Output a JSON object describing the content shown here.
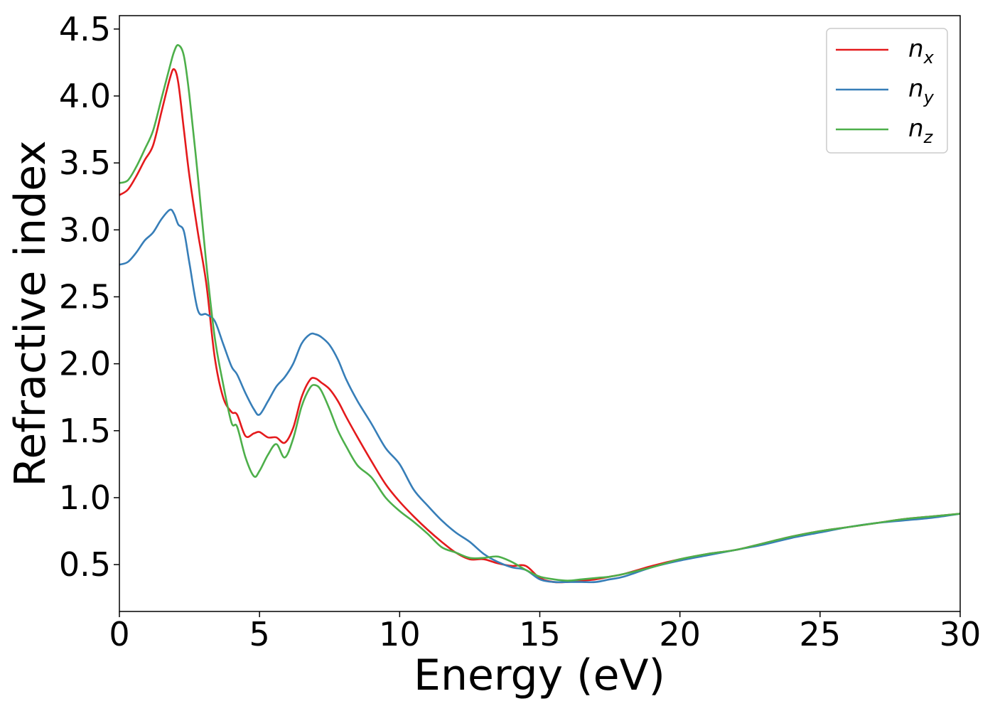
{
  "chart_data": {
    "type": "line",
    "title": "",
    "xlabel": "Energy (eV)",
    "ylabel": "Refractive index",
    "xlim": [
      0,
      30
    ],
    "ylim": [
      0.15,
      4.6
    ],
    "xticks": [
      0,
      5,
      10,
      15,
      20,
      25,
      30
    ],
    "yticks": [
      0.5,
      1.0,
      1.5,
      2.0,
      2.5,
      3.0,
      3.5,
      4.0,
      4.5
    ],
    "xtick_labels": [
      "0",
      "5",
      "10",
      "15",
      "20",
      "25",
      "30"
    ],
    "ytick_labels": [
      "0.5",
      "1.0",
      "1.5",
      "2.0",
      "2.5",
      "3.0",
      "3.5",
      "4.0",
      "4.5"
    ],
    "grid": false,
    "legend_position": "top-right",
    "series": [
      {
        "name": "n",
        "subscript": "x",
        "color": "#e41a1c",
        "x": [
          0,
          0.3,
          0.6,
          0.9,
          1.2,
          1.5,
          1.8,
          1.95,
          2.1,
          2.3,
          2.5,
          2.8,
          3.1,
          3.4,
          3.7,
          4.0,
          4.2,
          4.5,
          4.8,
          5.0,
          5.3,
          5.6,
          5.9,
          6.2,
          6.5,
          6.8,
          7.0,
          7.2,
          7.5,
          7.8,
          8.1,
          8.5,
          9.0,
          9.5,
          10.0,
          10.5,
          11.0,
          11.5,
          12.0,
          12.5,
          13.0,
          13.5,
          14.0,
          14.5,
          15.0,
          15.5,
          16.0,
          16.5,
          17.0,
          17.5,
          18.0,
          19.0,
          20.0,
          21.0,
          22.0,
          23.0,
          24.0,
          25.0,
          26.0,
          27.0,
          28.0,
          29.0,
          30.0
        ],
        "y": [
          3.26,
          3.3,
          3.4,
          3.52,
          3.63,
          3.88,
          4.13,
          4.2,
          4.1,
          3.75,
          3.4,
          2.98,
          2.6,
          2.05,
          1.75,
          1.64,
          1.62,
          1.46,
          1.48,
          1.49,
          1.45,
          1.45,
          1.41,
          1.52,
          1.75,
          1.88,
          1.89,
          1.86,
          1.81,
          1.72,
          1.6,
          1.45,
          1.27,
          1.1,
          0.97,
          0.86,
          0.76,
          0.67,
          0.59,
          0.54,
          0.54,
          0.51,
          0.49,
          0.49,
          0.4,
          0.37,
          0.37,
          0.38,
          0.39,
          0.41,
          0.43,
          0.49,
          0.54,
          0.58,
          0.61,
          0.66,
          0.71,
          0.75,
          0.78,
          0.81,
          0.84,
          0.86,
          0.88
        ]
      },
      {
        "name": "n",
        "subscript": "y",
        "color": "#377eb8",
        "x": [
          0,
          0.3,
          0.6,
          0.9,
          1.2,
          1.5,
          1.8,
          1.95,
          2.1,
          2.3,
          2.5,
          2.8,
          3.1,
          3.4,
          3.7,
          4.0,
          4.2,
          4.5,
          4.8,
          5.0,
          5.3,
          5.6,
          5.9,
          6.2,
          6.5,
          6.8,
          7.0,
          7.2,
          7.5,
          7.8,
          8.1,
          8.5,
          9.0,
          9.5,
          10.0,
          10.5,
          11.0,
          11.5,
          12.0,
          12.5,
          13.0,
          13.5,
          14.0,
          14.5,
          15.0,
          15.5,
          16.0,
          16.5,
          17.0,
          17.5,
          18.0,
          19.0,
          20.0,
          21.0,
          22.0,
          23.0,
          24.0,
          25.0,
          26.0,
          27.0,
          28.0,
          29.0,
          30.0
        ],
        "y": [
          2.74,
          2.76,
          2.83,
          2.92,
          2.98,
          3.08,
          3.15,
          3.12,
          3.04,
          2.99,
          2.75,
          2.4,
          2.37,
          2.32,
          2.15,
          1.98,
          1.92,
          1.78,
          1.66,
          1.62,
          1.72,
          1.83,
          1.9,
          2.0,
          2.15,
          2.22,
          2.22,
          2.2,
          2.14,
          2.03,
          1.88,
          1.72,
          1.55,
          1.37,
          1.25,
          1.06,
          0.94,
          0.83,
          0.74,
          0.67,
          0.58,
          0.52,
          0.48,
          0.46,
          0.39,
          0.37,
          0.37,
          0.37,
          0.37,
          0.39,
          0.41,
          0.48,
          0.53,
          0.57,
          0.61,
          0.65,
          0.7,
          0.74,
          0.78,
          0.81,
          0.83,
          0.85,
          0.88
        ]
      },
      {
        "name": "n",
        "subscript": "z",
        "color": "#4daf4a",
        "x": [
          0,
          0.3,
          0.6,
          0.9,
          1.2,
          1.5,
          1.8,
          1.95,
          2.1,
          2.3,
          2.5,
          2.8,
          3.1,
          3.4,
          3.7,
          4.0,
          4.2,
          4.5,
          4.8,
          5.0,
          5.3,
          5.6,
          5.9,
          6.2,
          6.5,
          6.8,
          7.0,
          7.2,
          7.5,
          7.8,
          8.1,
          8.5,
          9.0,
          9.5,
          10.0,
          10.5,
          11.0,
          11.5,
          12.0,
          12.5,
          13.0,
          13.5,
          14.0,
          14.5,
          15.0,
          15.5,
          16.0,
          16.5,
          17.0,
          17.5,
          18.0,
          19.0,
          20.0,
          21.0,
          22.0,
          23.0,
          24.0,
          25.0,
          26.0,
          27.0,
          28.0,
          29.0,
          30.0
        ],
        "y": [
          3.35,
          3.37,
          3.47,
          3.6,
          3.74,
          3.98,
          4.22,
          4.33,
          4.38,
          4.3,
          4.0,
          3.4,
          2.75,
          2.2,
          1.85,
          1.56,
          1.53,
          1.3,
          1.16,
          1.2,
          1.32,
          1.4,
          1.3,
          1.44,
          1.68,
          1.82,
          1.84,
          1.8,
          1.66,
          1.5,
          1.38,
          1.24,
          1.15,
          1.0,
          0.9,
          0.82,
          0.73,
          0.63,
          0.59,
          0.55,
          0.55,
          0.56,
          0.52,
          0.46,
          0.41,
          0.39,
          0.38,
          0.39,
          0.4,
          0.41,
          0.43,
          0.48,
          0.54,
          0.58,
          0.61,
          0.66,
          0.71,
          0.75,
          0.78,
          0.81,
          0.84,
          0.86,
          0.88
        ]
      }
    ]
  }
}
